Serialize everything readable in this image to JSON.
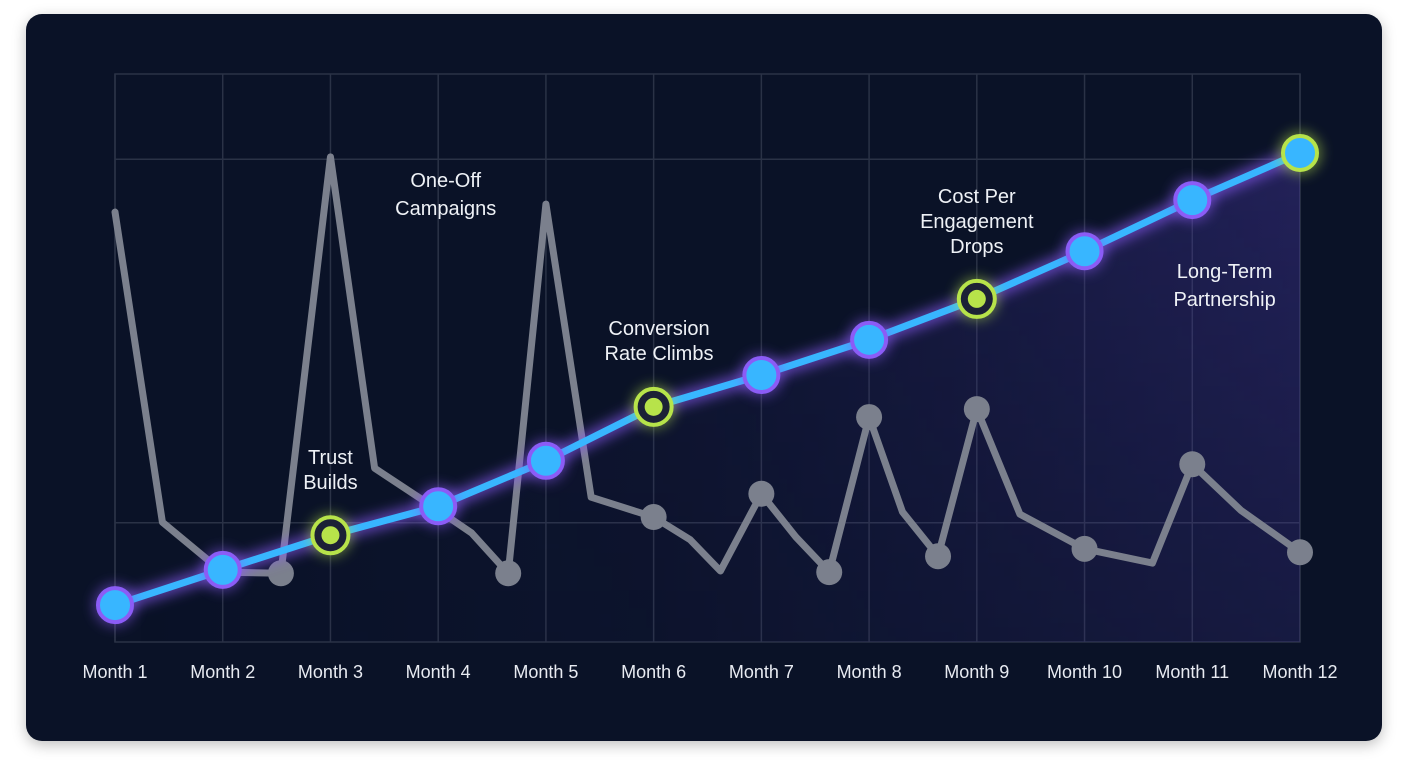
{
  "chart_data": {
    "type": "line",
    "title": "",
    "xlabel": "",
    "ylabel": "",
    "categories": [
      "Month 1",
      "Month 2",
      "Month 3",
      "Month 4",
      "Month 5",
      "Month 6",
      "Month 7",
      "Month 8",
      "Month 9",
      "Month 10",
      "Month 11",
      "Month 12"
    ],
    "xlim": [
      1,
      12
    ],
    "ylim": [
      0,
      100
    ],
    "grid": true,
    "series": [
      {
        "style": "glowing-rising",
        "color": "#38b6ff",
        "marker_ring_color": "#8b5cf6",
        "x": [
          1,
          2,
          3,
          4,
          5,
          6,
          7,
          8,
          9,
          10,
          11,
          12
        ],
        "values": [
          6.5,
          12.7,
          18.8,
          23.9,
          31.9,
          41.4,
          47.0,
          53.2,
          60.4,
          68.8,
          77.8,
          86.1
        ],
        "highlighted_months": [
          3,
          6,
          9,
          12
        ],
        "highlight_color": "#b7e34a"
      },
      {
        "style": "volatile",
        "color": "#7b808d",
        "x": [
          1,
          1.44,
          2,
          2.54,
          3,
          3.41,
          4,
          4.31,
          4.65,
          5,
          5.42,
          6,
          6.34,
          6.62,
          7,
          7.32,
          7.63,
          8,
          8.31,
          8.64,
          9,
          9.4,
          10,
          10.63,
          11,
          11.45,
          12
        ],
        "values": [
          75.7,
          21.1,
          12.3,
          12.1,
          85.4,
          30.6,
          23.2,
          19.2,
          12.1,
          77.1,
          25.5,
          22.0,
          18.0,
          12.5,
          26.1,
          18.5,
          12.3,
          39.6,
          22.9,
          15.1,
          41.0,
          22.5,
          16.4,
          13.9,
          31.3,
          23.2,
          15.8
        ],
        "markers": [
          false,
          false,
          false,
          true,
          false,
          false,
          false,
          false,
          true,
          false,
          false,
          true,
          false,
          false,
          true,
          false,
          true,
          true,
          false,
          true,
          true,
          false,
          true,
          false,
          true,
          false,
          true
        ]
      }
    ],
    "annotations": [
      {
        "month": 3,
        "lines": [
          "Trust",
          "Builds"
        ]
      },
      {
        "month": 4.07,
        "lines": [
          "One-Off",
          "Campaigns"
        ]
      },
      {
        "month": 6.05,
        "lines": [
          "Conversion",
          "Rate Climbs"
        ]
      },
      {
        "month": 9,
        "lines": [
          "Cost Per",
          "Engagement",
          "Drops"
        ]
      },
      {
        "month": 11.3,
        "lines": [
          "Long-Term",
          "Partnership"
        ]
      }
    ]
  }
}
